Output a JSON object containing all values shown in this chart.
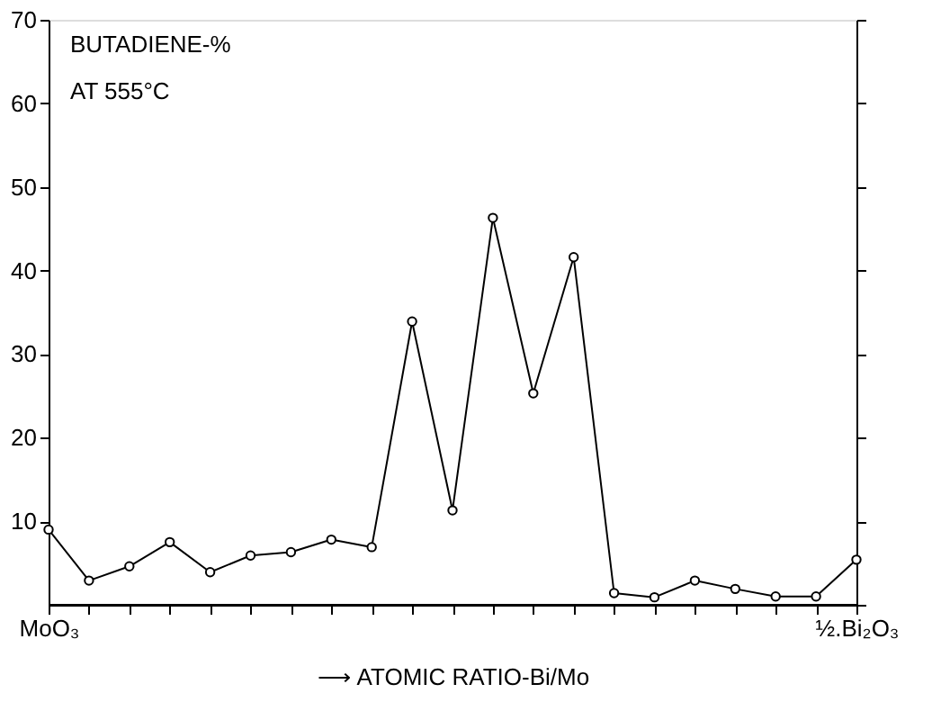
{
  "chart_data": {
    "type": "line",
    "categories": [
      "MoO₃",
      null,
      null,
      null,
      null,
      null,
      null,
      null,
      null,
      null,
      null,
      null,
      null,
      null,
      null,
      null,
      null,
      null,
      null,
      null,
      "½.Bi₂O₃"
    ],
    "series": [
      {
        "color": "#000000",
        "values": [
          9,
          2.9,
          4.6,
          7.5,
          3.9,
          5.9,
          6.3,
          7.8,
          6.9,
          33.9,
          11.3,
          46.3,
          25.3,
          41.6,
          1.4,
          0.9,
          2.9,
          1.9,
          1.0,
          1.0,
          5.4
        ]
      }
    ],
    "ylim": [
      0,
      70
    ],
    "yticks": [
      10,
      20,
      30,
      40,
      50,
      60,
      70
    ],
    "ylabel": "BUTADIENE-%\nAT 555°C",
    "xlabel": "⟶ ATOMIC RATIO-Bi/Mo",
    "marker": "circle",
    "line_style": "solid",
    "grid": false
  }
}
